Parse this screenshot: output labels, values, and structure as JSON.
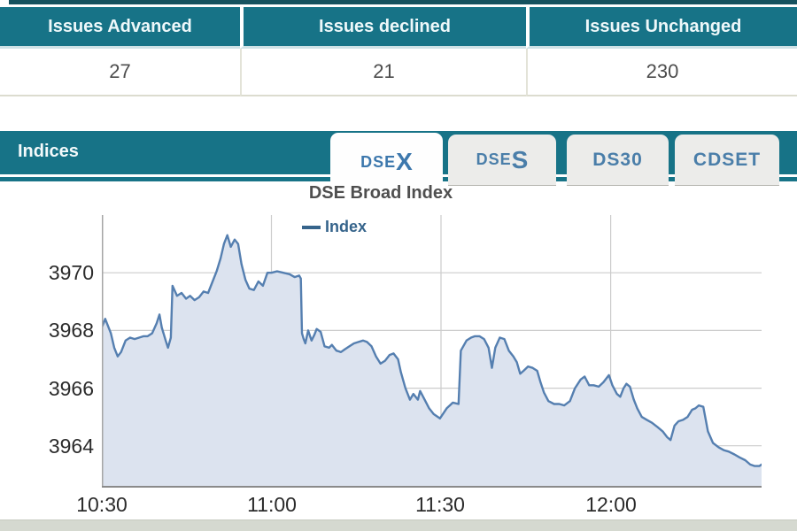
{
  "top_table": {
    "columns": [
      {
        "header": "Issues Advanced",
        "value": "27"
      },
      {
        "header": "Issues declined",
        "value": "21"
      },
      {
        "header": "Issues Unchanged",
        "value": "230"
      }
    ]
  },
  "indices_panel": {
    "title": "Indices",
    "tabs": [
      {
        "prefix": "DSE",
        "suffix": "X",
        "label": "DSEX",
        "active": true
      },
      {
        "prefix": "DSE",
        "suffix": "S",
        "label": "DSES",
        "active": false
      },
      {
        "prefix": "DS30",
        "suffix": "",
        "label": "DS30",
        "active": false
      },
      {
        "prefix": "CDSET",
        "suffix": "",
        "label": "CDSET",
        "active": false
      }
    ]
  },
  "chart_data": {
    "type": "area",
    "title": "DSE Broad Index",
    "legend_label": "Index",
    "legend_position": "top-center",
    "grid": true,
    "x_ticks": [
      "10:30",
      "11:00",
      "11:30",
      "12:00"
    ],
    "x_tick_minutes": [
      0,
      30,
      60,
      90
    ],
    "x_domain_minutes": [
      0,
      116.7
    ],
    "y_ticks": [
      3970,
      3968,
      3966,
      3964
    ],
    "ylim": [
      3962.55,
      3972.0
    ],
    "line_color": "#557fb0",
    "fill_color": "#dce3ef",
    "grid_color": "#cccccc",
    "axis_color": "#8a8a8a",
    "series": [
      {
        "name": "Index",
        "points": [
          [
            0,
            3968.1
          ],
          [
            0.6,
            3968.4
          ],
          [
            1.6,
            3967.9
          ],
          [
            2.2,
            3967.4
          ],
          [
            2.8,
            3967.1
          ],
          [
            3.4,
            3967.25
          ],
          [
            4.2,
            3967.65
          ],
          [
            5,
            3967.75
          ],
          [
            5.8,
            3967.7
          ],
          [
            6.6,
            3967.75
          ],
          [
            7.4,
            3967.8
          ],
          [
            8.1,
            3967.8
          ],
          [
            8.9,
            3967.9
          ],
          [
            9.7,
            3968.25
          ],
          [
            10.2,
            3968.55
          ],
          [
            10.6,
            3968.1
          ],
          [
            11.3,
            3967.65
          ],
          [
            11.7,
            3967.4
          ],
          [
            12.2,
            3967.75
          ],
          [
            12.5,
            3969.55
          ],
          [
            13.3,
            3969.2
          ],
          [
            14.1,
            3969.3
          ],
          [
            14.9,
            3969.1
          ],
          [
            15.6,
            3969.2
          ],
          [
            16.4,
            3969.05
          ],
          [
            17.2,
            3969.15
          ],
          [
            18,
            3969.35
          ],
          [
            18.8,
            3969.3
          ],
          [
            19.6,
            3969.7
          ],
          [
            20.3,
            3970.05
          ],
          [
            21,
            3970.5
          ],
          [
            21.6,
            3971.0
          ],
          [
            22.2,
            3971.3
          ],
          [
            22.8,
            3970.9
          ],
          [
            23.5,
            3971.15
          ],
          [
            24.1,
            3971.0
          ],
          [
            24.7,
            3970.3
          ],
          [
            25.4,
            3969.75
          ],
          [
            26.1,
            3969.45
          ],
          [
            26.9,
            3969.4
          ],
          [
            27.7,
            3969.7
          ],
          [
            28.5,
            3969.55
          ],
          [
            29.3,
            3970.0
          ],
          [
            30,
            3970.0
          ],
          [
            31,
            3970.05
          ],
          [
            32.1,
            3970.0
          ],
          [
            33.2,
            3969.95
          ],
          [
            34.1,
            3969.85
          ],
          [
            34.9,
            3969.9
          ],
          [
            35.2,
            3969.8
          ],
          [
            35.4,
            3967.9
          ],
          [
            35.7,
            3967.7
          ],
          [
            36,
            3967.55
          ],
          [
            36.5,
            3968.0
          ],
          [
            37.1,
            3967.65
          ],
          [
            37.6,
            3967.85
          ],
          [
            38,
            3968.05
          ],
          [
            38.7,
            3967.95
          ],
          [
            39.4,
            3967.45
          ],
          [
            40.2,
            3967.4
          ],
          [
            40.7,
            3967.5
          ],
          [
            41.5,
            3967.3
          ],
          [
            42.3,
            3967.25
          ],
          [
            43,
            3967.35
          ],
          [
            43.8,
            3967.45
          ],
          [
            44.6,
            3967.55
          ],
          [
            45.4,
            3967.6
          ],
          [
            46.2,
            3967.65
          ],
          [
            46.9,
            3967.6
          ],
          [
            47.7,
            3967.45
          ],
          [
            48.5,
            3967.1
          ],
          [
            49.3,
            3966.85
          ],
          [
            50.1,
            3966.95
          ],
          [
            50.9,
            3967.15
          ],
          [
            51.6,
            3967.2
          ],
          [
            52.4,
            3967.0
          ],
          [
            52.9,
            3966.55
          ],
          [
            53.7,
            3966.0
          ],
          [
            54.5,
            3965.6
          ],
          [
            55.1,
            3965.8
          ],
          [
            55.9,
            3965.6
          ],
          [
            56.3,
            3965.9
          ],
          [
            57.1,
            3965.6
          ],
          [
            57.9,
            3965.3
          ],
          [
            58.7,
            3965.1
          ],
          [
            59.8,
            3964.95
          ],
          [
            61,
            3965.3
          ],
          [
            62.1,
            3965.5
          ],
          [
            63.1,
            3965.45
          ],
          [
            63.5,
            3967.3
          ],
          [
            64.5,
            3967.65
          ],
          [
            65.3,
            3967.75
          ],
          [
            66,
            3967.8
          ],
          [
            66.8,
            3967.8
          ],
          [
            67.6,
            3967.7
          ],
          [
            68.4,
            3967.4
          ],
          [
            69,
            3966.7
          ],
          [
            69.6,
            3967.4
          ],
          [
            70.4,
            3967.75
          ],
          [
            71.2,
            3967.7
          ],
          [
            72,
            3967.3
          ],
          [
            72.8,
            3967.1
          ],
          [
            73.4,
            3966.9
          ],
          [
            74,
            3966.5
          ],
          [
            74.6,
            3966.6
          ],
          [
            75.4,
            3966.75
          ],
          [
            76.2,
            3966.7
          ],
          [
            77,
            3966.6
          ],
          [
            77.6,
            3966.2
          ],
          [
            78.2,
            3965.85
          ],
          [
            79,
            3965.55
          ],
          [
            80,
            3965.45
          ],
          [
            80.9,
            3965.45
          ],
          [
            81.8,
            3965.4
          ],
          [
            82.8,
            3965.55
          ],
          [
            83.7,
            3966.0
          ],
          [
            84.7,
            3966.3
          ],
          [
            85.4,
            3966.4
          ],
          [
            86.2,
            3966.1
          ],
          [
            87,
            3966.1
          ],
          [
            87.9,
            3966.05
          ],
          [
            88.7,
            3966.2
          ],
          [
            89.7,
            3966.45
          ],
          [
            90.3,
            3966.1
          ],
          [
            91.1,
            3965.8
          ],
          [
            91.7,
            3965.7
          ],
          [
            92.3,
            3966.0
          ],
          [
            92.8,
            3966.15
          ],
          [
            93.4,
            3966.05
          ],
          [
            94.1,
            3965.6
          ],
          [
            94.7,
            3965.3
          ],
          [
            95.5,
            3965.0
          ],
          [
            96.4,
            3964.9
          ],
          [
            97.3,
            3964.8
          ],
          [
            98.3,
            3964.65
          ],
          [
            99.2,
            3964.5
          ],
          [
            100,
            3964.3
          ],
          [
            100.6,
            3964.2
          ],
          [
            101.3,
            3964.7
          ],
          [
            102,
            3964.85
          ],
          [
            102.8,
            3964.9
          ],
          [
            103.6,
            3965.0
          ],
          [
            104.4,
            3965.25
          ],
          [
            105,
            3965.3
          ],
          [
            105.6,
            3965.4
          ],
          [
            106.4,
            3965.35
          ],
          [
            107.2,
            3964.5
          ],
          [
            108.1,
            3964.1
          ],
          [
            109.1,
            3963.95
          ],
          [
            110,
            3963.85
          ],
          [
            110.9,
            3963.8
          ],
          [
            111.9,
            3963.7
          ],
          [
            112.8,
            3963.6
          ],
          [
            113.8,
            3963.5
          ],
          [
            114.7,
            3963.35
          ],
          [
            115.5,
            3963.3
          ],
          [
            116.3,
            3963.3
          ],
          [
            116.7,
            3963.35
          ]
        ]
      }
    ]
  }
}
